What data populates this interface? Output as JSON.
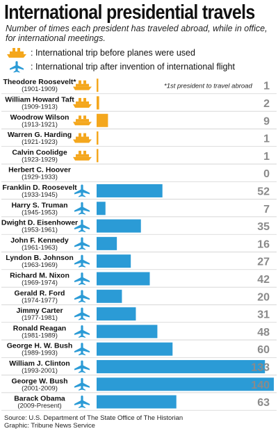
{
  "header": {
    "title": "International presidential travels",
    "subtitle": "Number of times each president has traveled abroad, while in office, for international meetings."
  },
  "legend": [
    {
      "icon": "ship-icon",
      "label": ": International trip before planes were used",
      "color": "#f4a71d"
    },
    {
      "icon": "plane-icon",
      "label": ": International trip after invention of international flight",
      "color": "#2b9bd6"
    }
  ],
  "annotation": "*1st president to travel abroad",
  "colors": {
    "ship": "#f4a71d",
    "plane": "#2b9bd6",
    "value_text": "#8a8a8a",
    "divider": "#c9c9c9"
  },
  "chart_data": {
    "type": "bar",
    "orientation": "horizontal",
    "categories": [
      "Theodore Roosevelt*",
      "William Howard Taft",
      "Woodrow Wilson",
      "Warren G. Harding",
      "Calvin Coolidge",
      "Herbert C. Hoover",
      "Franklin D. Roosevelt",
      "Harry S. Truman",
      "Dwight D. Eisenhower",
      "John F. Kennedy",
      "Lyndon B. Johnson",
      "Richard M. Nixon",
      "Gerald R. Ford",
      "Jimmy Carter",
      "Ronald Reagan",
      "George H. W. Bush",
      "William J. Clinton",
      "George W. Bush",
      "Barack Obama"
    ],
    "terms": [
      "(1901-1909)",
      "(1909-1913)",
      "(1913-1921)",
      "(1921-1923)",
      "(1923-1929)",
      "(1929-1933)",
      "(1933-1945)",
      "(1945-1953)",
      "(1953-1961)",
      "(1961-1963)",
      "(1963-1969)",
      "(1969-1974)",
      "(1974-1977)",
      "(1977-1981)",
      "(1981-1989)",
      "(1989-1993)",
      "(1993-2001)",
      "(2001-2009)",
      "(2009-Present)"
    ],
    "values": [
      1,
      2,
      9,
      1,
      1,
      0,
      52,
      7,
      35,
      16,
      27,
      42,
      20,
      31,
      48,
      60,
      133,
      140,
      63
    ],
    "era": [
      "ship",
      "ship",
      "ship",
      "ship",
      "ship",
      "none",
      "plane",
      "plane",
      "plane",
      "plane",
      "plane",
      "plane",
      "plane",
      "plane",
      "plane",
      "plane",
      "plane",
      "plane",
      "plane"
    ],
    "xlim": [
      0,
      140
    ]
  },
  "footer": {
    "source": "Source: U.S. Department of The State Office of The Historian",
    "credit": "Graphic: Tribune News Service"
  }
}
